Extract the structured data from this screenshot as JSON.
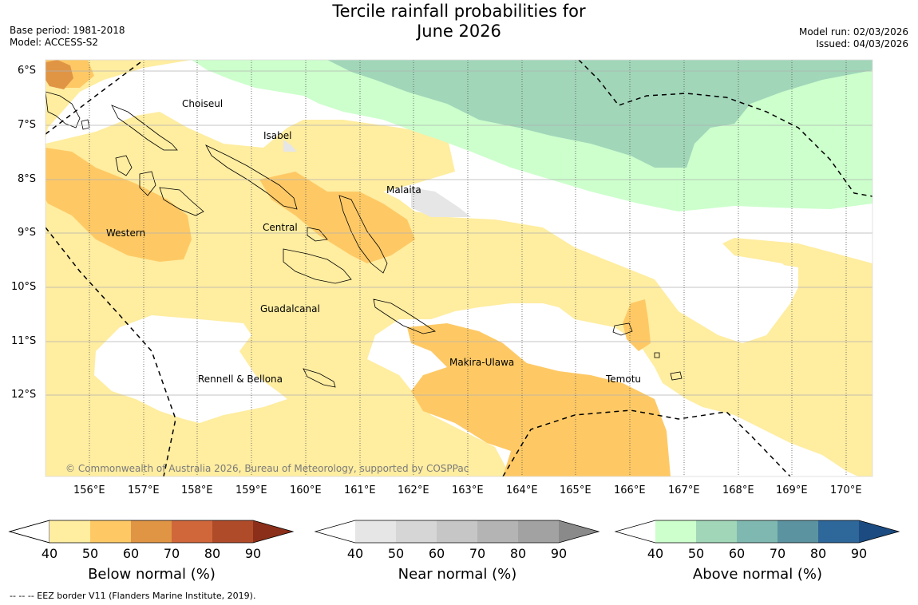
{
  "header": {
    "title_line1": "Tercile rainfall probabilities for",
    "title_line2": "June 2026",
    "base_period": "Base period: 1981-2018",
    "model": "Model: ACCESS-S2",
    "model_run": "Model run: 02/03/2026",
    "issued": "Issued: 04/03/2026"
  },
  "map": {
    "lat_labels": [
      "6°S",
      "7°S",
      "8°S",
      "9°S",
      "10°S",
      "11°S",
      "12°S"
    ],
    "lon_labels": [
      "156°E",
      "157°E",
      "158°E",
      "159°E",
      "160°E",
      "161°E",
      "162°E",
      "163°E",
      "164°E",
      "165°E",
      "166°E",
      "167°E",
      "168°E",
      "169°E",
      "170°E"
    ],
    "regions": [
      "Choiseul",
      "Isabel",
      "Malaita",
      "Western",
      "Central",
      "Guadalcanal",
      "Makira-Ulawa",
      "Rennell & Bellona",
      "Temotu"
    ],
    "copyright": "© Commonwealth of Australia 2026, Bureau of Meteorology, supported by COSPPac"
  },
  "legend": {
    "ticks": [
      "40",
      "50",
      "60",
      "70",
      "80",
      "90"
    ],
    "below": {
      "title": "Below normal (%)",
      "colors": [
        "#ffeda0",
        "#fec965",
        "#e09545",
        "#d0673a",
        "#b04b2a",
        "#8b2f1a"
      ]
    },
    "near": {
      "title": "Near normal (%)",
      "colors": [
        "#e6e6e6",
        "#d6d6d6",
        "#c6c6c6",
        "#b4b4b4",
        "#a2a2a2",
        "#8a8a8a"
      ]
    },
    "above": {
      "title": "Above normal (%)",
      "colors": [
        "#ccffcc",
        "#a1d6b9",
        "#7fb8b0",
        "#5b93a0",
        "#2e6799",
        "#1b4b80"
      ]
    }
  },
  "footer": {
    "eez_note": "--  --  -- EEZ border V11 (Flanders Marine Institute, 2019)."
  }
}
